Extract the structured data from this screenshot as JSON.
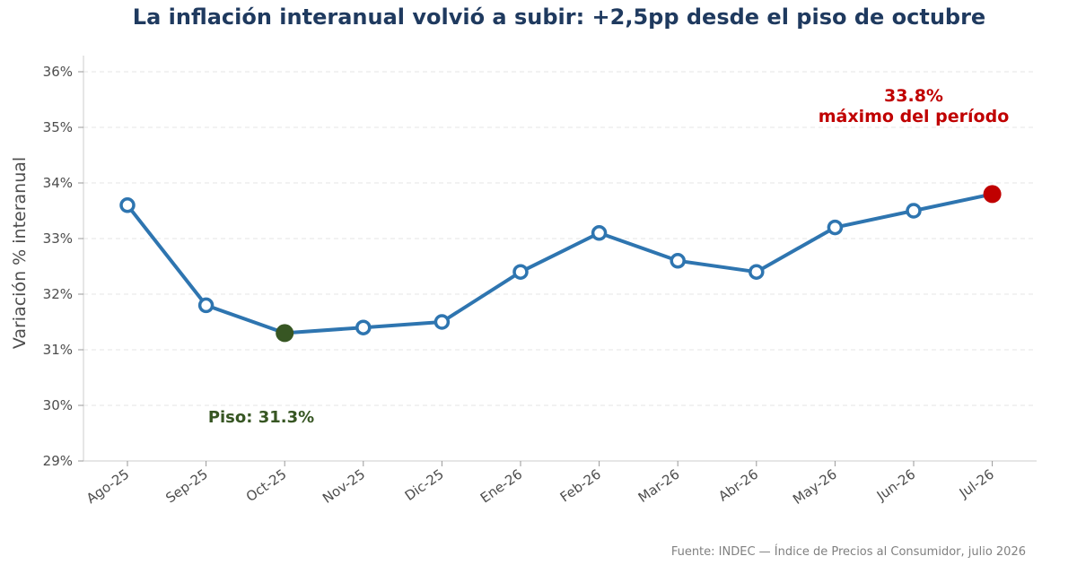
{
  "chart_data": {
    "type": "line",
    "title": "La inflación interanual volvió a subir: +2,5pp desde el piso de octubre",
    "xlabel": "",
    "ylabel": "Variación % interanual",
    "categories": [
      "Ago-25",
      "Sep-25",
      "Oct-25",
      "Nov-25",
      "Dic-25",
      "Ene-26",
      "Feb-26",
      "Mar-26",
      "Abr-26",
      "May-26",
      "Jun-26",
      "Jul-26"
    ],
    "series": [
      {
        "values": [
          33.6,
          31.8,
          31.3,
          31.4,
          31.5,
          32.4,
          33.1,
          32.6,
          32.4,
          33.2,
          33.5,
          33.8
        ]
      }
    ],
    "ylim": [
      29,
      36
    ],
    "y_ticks": [
      29,
      30,
      31,
      32,
      33,
      34,
      35,
      36
    ],
    "y_tick_labels": [
      "29%",
      "30%",
      "31%",
      "32%",
      "33%",
      "34%",
      "35%",
      "36%"
    ],
    "grid": "horizontal-dashed",
    "legend": "none",
    "highlights": {
      "min": {
        "category": "Oct-25",
        "value": 31.3,
        "label": "Piso: 31.3%"
      },
      "max": {
        "category": "Jul-26",
        "value": 33.8,
        "label_value": "33.8%",
        "label_text": "máximo del período"
      }
    },
    "source": "Fuente: INDEC — Índice de Precios al Consumidor, julio 2026"
  },
  "colors": {
    "line": "#2e75b0",
    "marker_fill": "#ffffff",
    "min_marker": "#375623",
    "max_marker": "#c00000",
    "title": "#1f3a5f",
    "grid": "#e6e6e6",
    "axis": "#cccccc"
  }
}
